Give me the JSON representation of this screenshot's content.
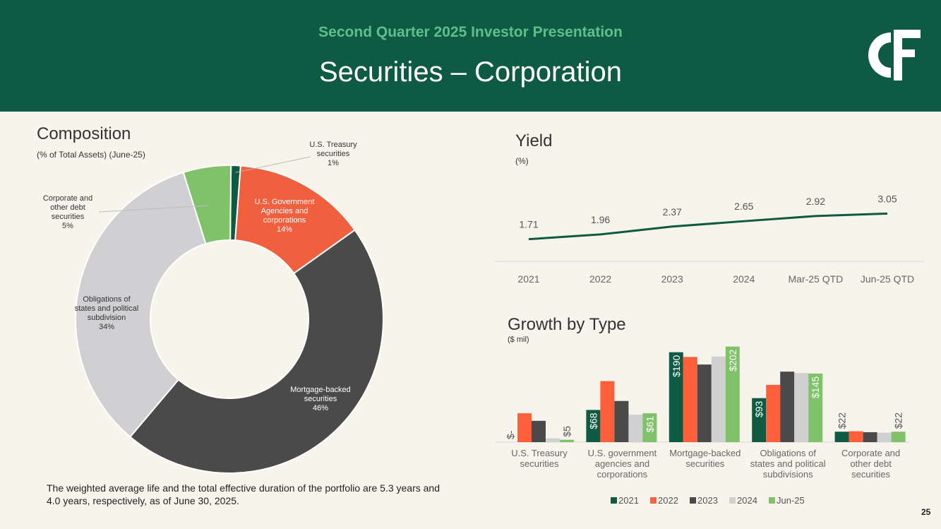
{
  "header": {
    "subtitle": "Second Quarter 2025 Investor Presentation",
    "title": "Securities – Corporation",
    "logo_text": "C&F"
  },
  "colors": {
    "header_bg": "#0e5a42",
    "accent_green": "#5fbf8c",
    "line": "#0e5a42",
    "series": [
      "#0e5a42",
      "#ff5f3a",
      "#4a4a4a",
      "#d0d0d0",
      "#7fc26a"
    ]
  },
  "composition": {
    "title": "Composition",
    "subtitle": "(% of Total Assets) (June-25)"
  },
  "yield": {
    "title": "Yield",
    "subtitle": "(%)"
  },
  "growth": {
    "title": "Growth by Type",
    "subtitle": "($ mil)"
  },
  "footnote": "The weighted average life and the total effective duration of the portfolio are 5.3 years and 4.0 years, respectively, as of June 30, 2025.",
  "page_number": "25",
  "chart_data": [
    {
      "type": "pie",
      "variant": "donut",
      "title": "Composition",
      "subtitle": "(% of Total Assets) (June-25)",
      "slices": [
        {
          "label": "U.S. Treasury securities",
          "value": 1,
          "display": "1%",
          "color": "#0e5a42"
        },
        {
          "label": "U.S. Government Agencies and corporations",
          "value": 14,
          "display": "14%",
          "color": "#f0603f"
        },
        {
          "label": "Mortgage-backed securities",
          "value": 46,
          "display": "46%",
          "color": "#4a4a4a"
        },
        {
          "label": "Obligations of states and political subdivision",
          "value": 34,
          "display": "34%",
          "color": "#d0d0d3"
        },
        {
          "label": "Corporate and other debt securities",
          "value": 5,
          "display": "5%",
          "color": "#7fc26a"
        }
      ]
    },
    {
      "type": "line",
      "title": "Yield",
      "subtitle": "(%)",
      "categories": [
        "2021",
        "2022",
        "2023",
        "2024",
        "Mar-25 QTD",
        "Jun-25 QTD"
      ],
      "values": [
        1.71,
        1.96,
        2.37,
        2.65,
        2.92,
        3.05
      ],
      "labels": [
        "1.71",
        "1.96",
        "2.37",
        "2.65",
        "2.92",
        "3.05"
      ],
      "ylim": [
        0,
        3.5
      ]
    },
    {
      "type": "bar",
      "title": "Growth by Type",
      "subtitle": "($ mil)",
      "categories": [
        [
          "U.S. Treasury",
          "securities"
        ],
        [
          "U.S. government",
          "agencies and",
          "corporations"
        ],
        [
          "Mortgage-backed",
          "securities"
        ],
        [
          "Obligations of",
          "states and political",
          "subdivisions"
        ],
        [
          "Corporate and",
          "other debt",
          "securities"
        ]
      ],
      "series": [
        {
          "name": "2021",
          "color": "#0e5a42",
          "values": [
            0,
            68,
            190,
            93,
            22
          ],
          "labels": [
            "$-",
            "$68",
            "$190",
            "$93",
            "$22"
          ]
        },
        {
          "name": "2022",
          "color": "#ff5f3a",
          "values": [
            61,
            129,
            180,
            121,
            23
          ],
          "labels": [
            "",
            "",
            "",
            "",
            ""
          ]
        },
        {
          "name": "2023",
          "color": "#4a4a4a",
          "values": [
            45,
            87,
            164,
            149,
            21
          ],
          "labels": [
            "",
            "",
            "",
            "",
            ""
          ]
        },
        {
          "name": "2024",
          "color": "#d0d0d0",
          "values": [
            8,
            58,
            181,
            146,
            20
          ],
          "labels": [
            "",
            "",
            "",
            "",
            ""
          ]
        },
        {
          "name": "Jun-25",
          "color": "#7fc26a",
          "values": [
            5,
            61,
            202,
            145,
            22
          ],
          "labels": [
            "$5",
            "$61",
            "$202",
            "$145",
            "$22"
          ]
        }
      ],
      "ylim": [
        0,
        210
      ],
      "legend": "bottom"
    }
  ]
}
